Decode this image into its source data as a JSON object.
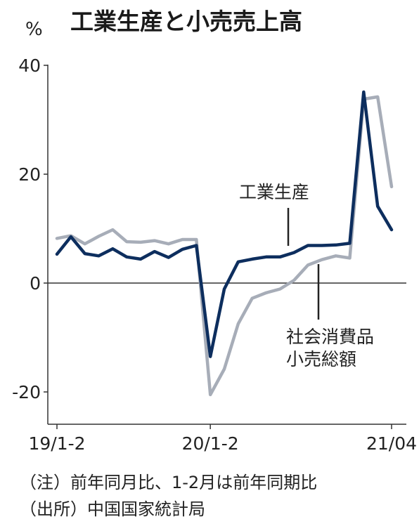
{
  "title": "工業生産と小売売上高",
  "unit": "%",
  "notes": [
    "（注）前年同月比、1-2月は前年同期比",
    "（出所）中国国家統計局"
  ],
  "colors": {
    "industrial": "#0d2e5e",
    "retail": "#a7adb8",
    "axis": "#333333"
  },
  "chart_data": {
    "type": "line",
    "title": "工業生産と小売売上高",
    "ylabel": "%",
    "ylim": [
      -25,
      45
    ],
    "yticks": [
      -20,
      0,
      20,
      40
    ],
    "xtick_labels": [
      "19/1-2",
      "20/1-2",
      "21/04"
    ],
    "x": [
      "19/1-2",
      "19/03",
      "19/04",
      "19/05",
      "19/06",
      "19/07",
      "19/08",
      "19/09",
      "19/10",
      "19/11",
      "19/12",
      "20/1-2",
      "20/03",
      "20/04",
      "20/05",
      "20/06",
      "20/07",
      "20/08",
      "20/09",
      "20/10",
      "20/11",
      "20/12",
      "21/1-2",
      "21/03",
      "21/04"
    ],
    "series": [
      {
        "name": "工業生産",
        "key": "industrial",
        "values": [
          5.3,
          8.5,
          5.4,
          5.0,
          6.3,
          4.8,
          4.4,
          5.8,
          4.7,
          6.2,
          6.9,
          -13.5,
          -1.1,
          3.9,
          4.4,
          4.8,
          4.8,
          5.6,
          6.9,
          6.9,
          7.0,
          7.3,
          35.1,
          14.1,
          9.8
        ]
      },
      {
        "name": "社会消費品小売総額",
        "key": "retail",
        "values": [
          8.2,
          8.7,
          7.2,
          8.6,
          9.8,
          7.6,
          7.5,
          7.8,
          7.2,
          8.0,
          8.0,
          -20.5,
          -15.8,
          -7.5,
          -2.8,
          -1.8,
          -1.1,
          0.5,
          3.3,
          4.3,
          5.0,
          4.6,
          33.8,
          34.2,
          17.7
        ]
      }
    ],
    "grid": false,
    "series_labels": [
      "工業生産",
      "社会消費品",
      "小売総額"
    ]
  }
}
